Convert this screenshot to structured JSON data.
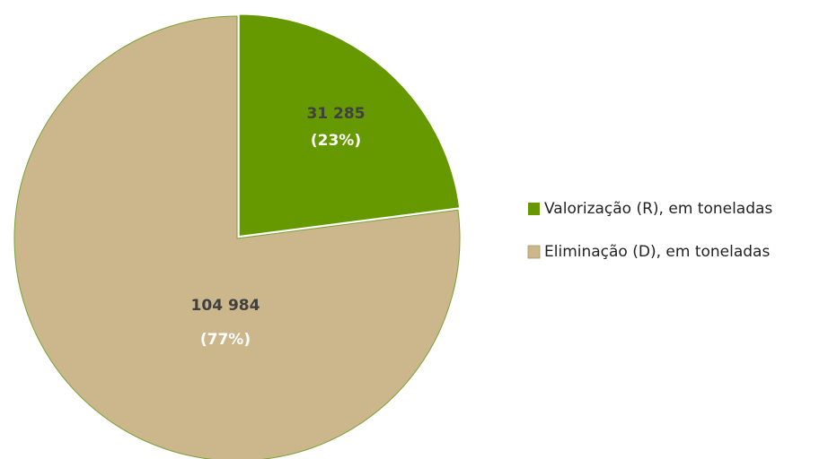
{
  "chart_data": {
    "type": "pie",
    "categories": [
      "Valorização (R), em toneladas",
      "Eliminação (D), em toneladas"
    ],
    "values": [
      31285,
      104984
    ],
    "value_labels": [
      "31 285",
      "104 984"
    ],
    "percent_labels": [
      "(23%)",
      "(77%)"
    ],
    "colors": [
      "#669900",
      "#ccb78c"
    ],
    "legend": "right"
  }
}
